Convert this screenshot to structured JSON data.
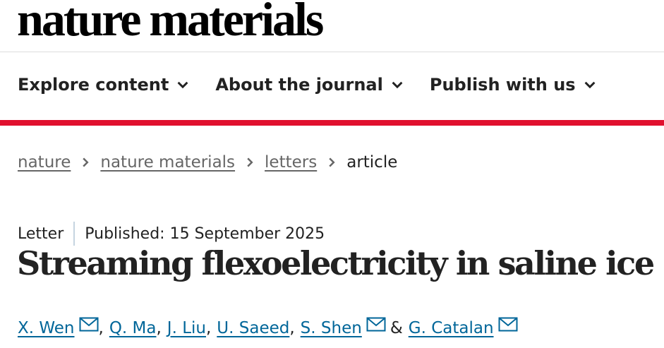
{
  "header": {
    "logo": "nature materials"
  },
  "nav": [
    "Explore content",
    "About the journal",
    "Publish with us"
  ],
  "breadcrumbs": [
    "nature",
    "nature materials",
    "letters",
    "article"
  ],
  "article": {
    "type": "Letter",
    "published_label": "Published:",
    "published_date": "15 September 2025",
    "title": "Streaming flexoelectricity in saline ice",
    "authors": [
      {
        "name": "X. Wen",
        "email": true,
        "suffix": ","
      },
      {
        "name": "Q. Ma",
        "suffix": ","
      },
      {
        "name": "J. Liu",
        "suffix": ","
      },
      {
        "name": "U. Saeed",
        "suffix": ","
      },
      {
        "name": "S. Shen",
        "email": true,
        "suffix": "&"
      },
      {
        "name": "G. Catalan",
        "email": true
      }
    ]
  }
}
